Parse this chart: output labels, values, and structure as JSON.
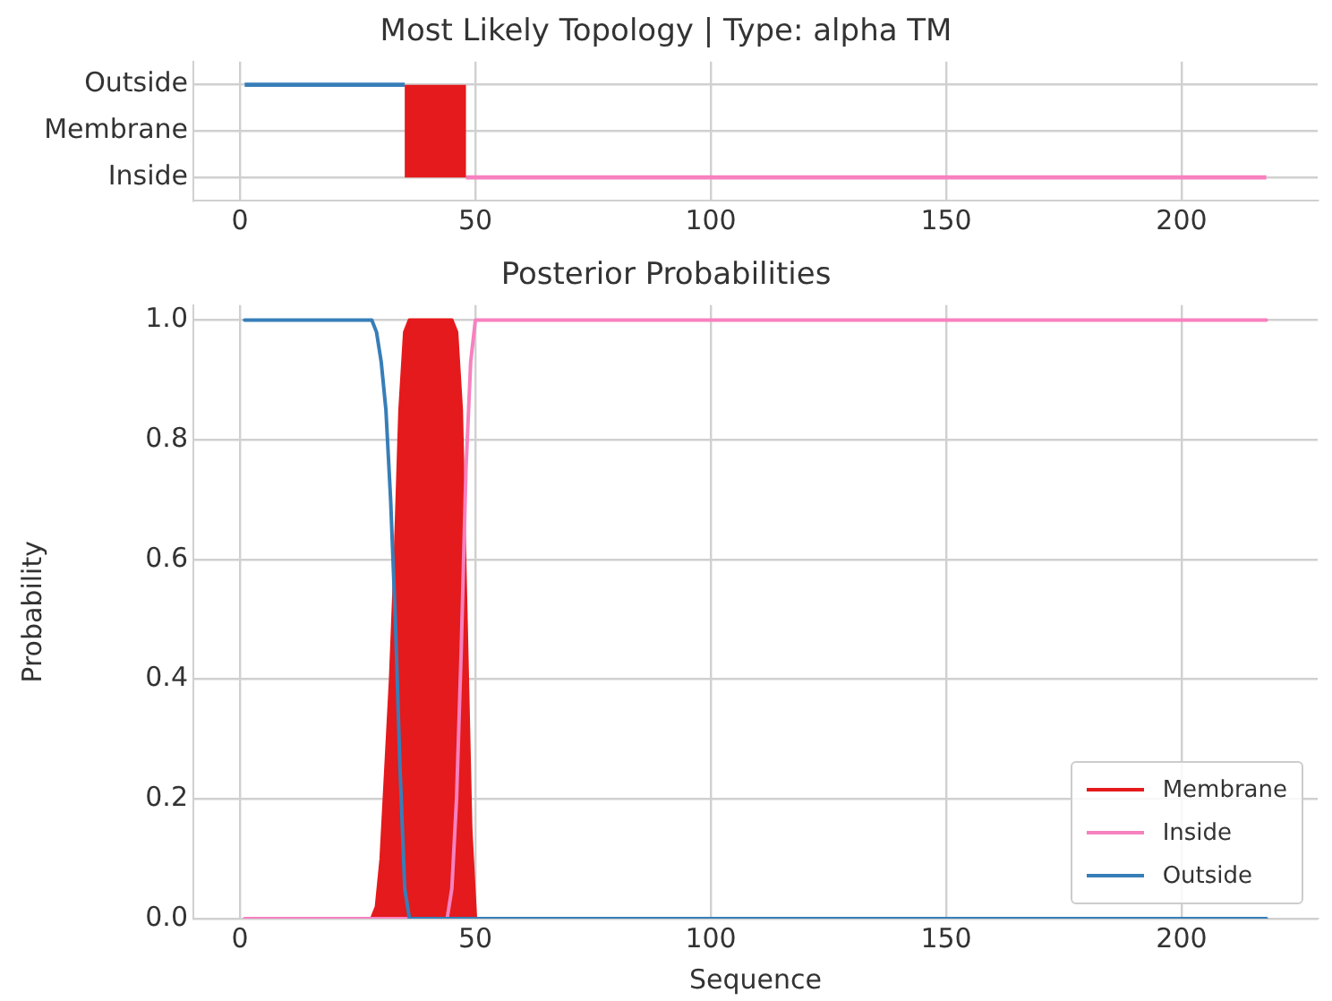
{
  "chart_data": [
    {
      "type": "bar",
      "orientation": "horizontal",
      "title": "Most Likely Topology | Type: alpha TM",
      "categories": [
        "Outside",
        "Membrane",
        "Inside"
      ],
      "base": [
        1,
        35,
        48
      ],
      "values": [
        34,
        13,
        170
      ],
      "colors": [
        "#377eb8",
        "#e41a1c",
        "#f781bf"
      ],
      "xlim": [
        -9.9,
        228.9
      ],
      "xticks": [
        0,
        50,
        100,
        150,
        200
      ],
      "grid": true,
      "legend": false
    },
    {
      "type": "line",
      "title": "Posterior Probabilities",
      "xlabel": "Sequence",
      "ylabel": "Probability",
      "xlim": [
        -9.9,
        228.9
      ],
      "xticks": [
        0,
        50,
        100,
        150,
        200
      ],
      "ylim": [
        0,
        1.025
      ],
      "yticks": [
        {
          "value": 0,
          "label": "0.0"
        },
        {
          "value": 0.2,
          "label": "0.2"
        },
        {
          "value": 0.4,
          "label": "0.4"
        },
        {
          "value": 0.6,
          "label": "0.6"
        },
        {
          "value": 0.8,
          "label": "0.8"
        },
        {
          "value": 1,
          "label": "1.0"
        }
      ],
      "grid": true,
      "legend": "bottom right",
      "series": [
        {
          "type": "area",
          "name": "Membrane",
          "color": "#e41a1c",
          "x": [
            28,
            29,
            30,
            31,
            32,
            33,
            34,
            35,
            36,
            45,
            46,
            47,
            48,
            49,
            50
          ],
          "values": [
            0,
            0.02,
            0.1,
            0.25,
            0.4,
            0.6,
            0.85,
            0.98,
            1,
            1,
            0.98,
            0.85,
            0.5,
            0.15,
            0
          ]
        },
        {
          "name": "Inside",
          "color": "#f781bf",
          "x": [
            1,
            44,
            45,
            46,
            47,
            48,
            49,
            50,
            218
          ],
          "values": [
            0,
            0,
            0.05,
            0.2,
            0.45,
            0.75,
            0.93,
            1,
            1
          ]
        },
        {
          "name": "Outside",
          "color": "#377eb8",
          "x": [
            1,
            28,
            29,
            30,
            31,
            32,
            33,
            34,
            35,
            36,
            218
          ],
          "values": [
            1,
            1,
            0.98,
            0.93,
            0.85,
            0.7,
            0.5,
            0.25,
            0.05,
            0,
            0
          ]
        }
      ]
    }
  ]
}
